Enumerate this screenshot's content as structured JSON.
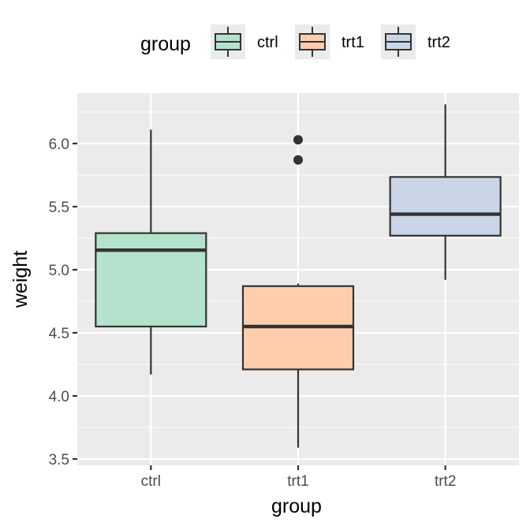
{
  "chart_data": {
    "type": "boxplot",
    "xlabel": "group",
    "ylabel": "weight",
    "categories": [
      "ctrl",
      "trt1",
      "trt2"
    ],
    "ylim": [
      3.45,
      6.4
    ],
    "yticks": [
      3.5,
      4.0,
      4.5,
      5.0,
      5.5,
      6.0
    ],
    "ytick_labels": [
      "3.5",
      "4.0",
      "4.5",
      "5.0",
      "5.5",
      "6.0"
    ],
    "legend": {
      "title": "group",
      "position": "top",
      "entries": [
        "ctrl",
        "trt1",
        "trt2"
      ]
    },
    "grid": true,
    "boxes": [
      {
        "group": "ctrl",
        "whisker_low": 4.17,
        "q1": 4.55,
        "median": 5.155,
        "q3": 5.29,
        "whisker_high": 6.11,
        "outliers": [],
        "fill": "#b3e2cd"
      },
      {
        "group": "trt1",
        "whisker_low": 3.59,
        "q1": 4.21,
        "median": 4.55,
        "q3": 4.87,
        "whisker_high": 4.89,
        "outliers": [
          5.87,
          6.03
        ],
        "fill": "#fdcdac"
      },
      {
        "group": "trt2",
        "whisker_low": 4.92,
        "q1": 5.27,
        "median": 5.44,
        "q3": 5.735,
        "whisker_high": 6.31,
        "outliers": [],
        "fill": "#cbd5e8"
      }
    ],
    "colors": {
      "panel": "#ebebeb",
      "grid": "#ffffff",
      "outline": "#333333"
    }
  }
}
